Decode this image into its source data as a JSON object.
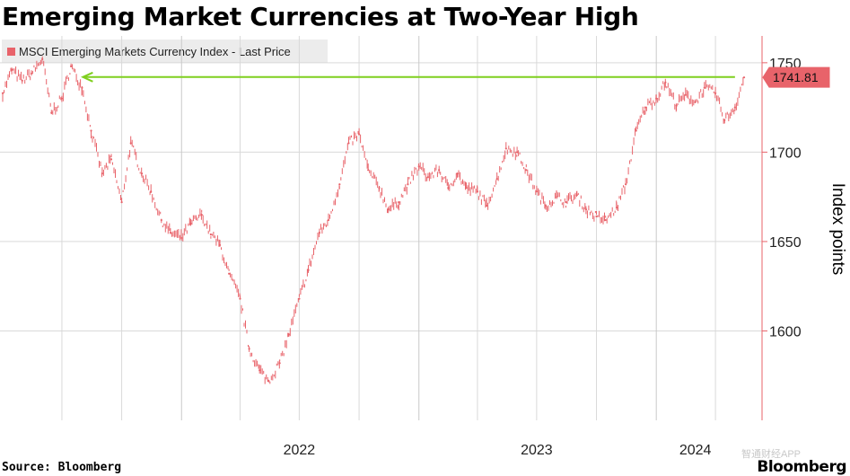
{
  "header": {
    "title": "Emerging Market Currencies at Two-Year High"
  },
  "footer": {
    "source": "Source: Bloomberg",
    "brand": "Bloomberg",
    "watermark": "智通财经APP"
  },
  "colors": {
    "series": "#e8636a",
    "reference_line": "#7fcf1f",
    "grid": "#d9d9d9",
    "axis": "#e8636a"
  },
  "chart_data": {
    "type": "line",
    "title": "Emerging Market Currencies at Two-Year High",
    "ylabel": "Index points",
    "xlabel": "",
    "ylim": [
      1550,
      1765
    ],
    "yticks": [
      1600,
      1650,
      1700,
      1750
    ],
    "x_tick_labels": [
      "2022",
      "2023",
      "2024"
    ],
    "grid": true,
    "legend_position": "top-left",
    "last_value_label": "1741.81",
    "reference_line": {
      "value": 1742,
      "from": "2021-08",
      "to": "2024-05",
      "style": "arrow pointing left"
    },
    "series": [
      {
        "name": "MSCI Emerging Markets Currency Index - Last Price",
        "x": [
          "2021-04-01",
          "2021-04-15",
          "2021-05-01",
          "2021-05-15",
          "2021-06-01",
          "2021-06-15",
          "2021-07-01",
          "2021-07-15",
          "2021-08-01",
          "2021-08-15",
          "2021-09-01",
          "2021-09-15",
          "2021-10-01",
          "2021-10-15",
          "2021-11-01",
          "2021-11-15",
          "2021-12-01",
          "2021-12-15",
          "2022-01-01",
          "2022-01-15",
          "2022-02-01",
          "2022-02-15",
          "2022-03-01",
          "2022-03-15",
          "2022-04-01",
          "2022-04-15",
          "2022-05-01",
          "2022-05-15",
          "2022-06-01",
          "2022-06-15",
          "2022-07-01",
          "2022-07-15",
          "2022-08-01",
          "2022-08-15",
          "2022-09-01",
          "2022-09-15",
          "2022-10-01",
          "2022-10-15",
          "2022-11-01",
          "2022-11-15",
          "2022-12-01",
          "2022-12-15",
          "2023-01-01",
          "2023-01-15",
          "2023-02-01",
          "2023-02-15",
          "2023-03-01",
          "2023-03-15",
          "2023-04-01",
          "2023-04-15",
          "2023-05-01",
          "2023-05-15",
          "2023-06-01",
          "2023-06-15",
          "2023-07-01",
          "2023-07-15",
          "2023-08-01",
          "2023-08-15",
          "2023-09-01",
          "2023-09-15",
          "2023-10-01",
          "2023-10-15",
          "2023-11-01",
          "2023-11-15",
          "2023-12-01",
          "2023-12-15",
          "2024-01-01",
          "2024-01-15",
          "2024-02-01",
          "2024-02-15",
          "2024-03-01",
          "2024-03-15",
          "2024-04-01",
          "2024-04-15",
          "2024-05-01",
          "2024-05-15"
        ],
        "values": [
          1733,
          1746,
          1740,
          1744,
          1752,
          1722,
          1730,
          1748,
          1736,
          1712,
          1688,
          1696,
          1672,
          1705,
          1688,
          1678,
          1662,
          1655,
          1652,
          1660,
          1665,
          1654,
          1648,
          1632,
          1618,
          1590,
          1578,
          1572,
          1582,
          1598,
          1618,
          1634,
          1655,
          1662,
          1682,
          1705,
          1710,
          1690,
          1680,
          1668,
          1672,
          1682,
          1692,
          1686,
          1690,
          1680,
          1688,
          1680,
          1678,
          1670,
          1685,
          1702,
          1700,
          1690,
          1678,
          1670,
          1675,
          1672,
          1676,
          1668,
          1664,
          1662,
          1669,
          1682,
          1712,
          1725,
          1730,
          1739,
          1726,
          1732,
          1728,
          1736,
          1733,
          1718,
          1725,
          1741.81
        ]
      }
    ]
  }
}
